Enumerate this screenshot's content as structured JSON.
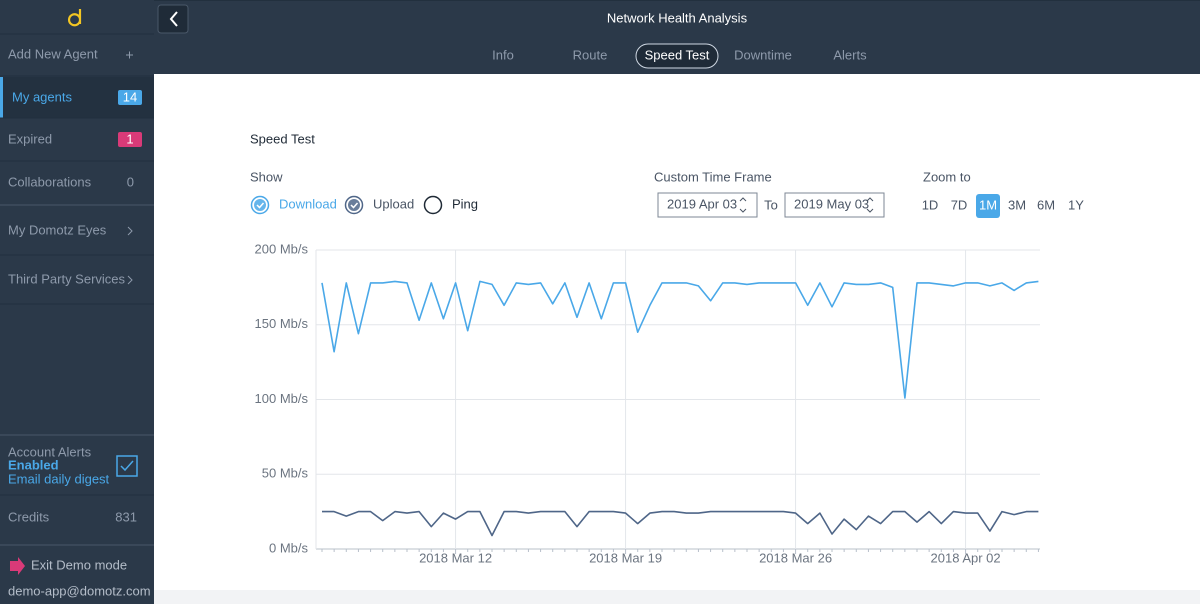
{
  "header": {
    "title": "Network Health Analysis",
    "tabs": [
      "Info",
      "Route",
      "Speed Test",
      "Downtime",
      "Alerts"
    ],
    "active_tab": 2
  },
  "sidebar": {
    "add_agent": "Add New Agent",
    "my_agents": {
      "label": "My agents",
      "count": 14
    },
    "expired": {
      "label": "Expired",
      "count": 1
    },
    "collaborations": {
      "label": "Collaborations",
      "count": 0
    },
    "eyes": "My Domotz Eyes",
    "third_party": "Third Party Services",
    "alerts": {
      "title": "Account Alerts",
      "status": "Enabled",
      "note": "Email daily digest"
    },
    "credits": {
      "label": "Credits",
      "value": 831
    },
    "exit": "Exit Demo mode",
    "email": "demo-app@domotz.com"
  },
  "panel": {
    "title": "Speed Test",
    "show_label": "Show",
    "time_frame": {
      "label": "Custom Time Frame",
      "from": "2019 Apr 03",
      "to_label": "To",
      "to": "2019 May 03"
    },
    "zoom": {
      "label": "Zoom to",
      "options": [
        "1D",
        "7D",
        "1M",
        "3M",
        "6M",
        "1Y"
      ],
      "active": 2
    },
    "unchecked_toggle": "Ping"
  },
  "chart_data": {
    "type": "line",
    "categories": [
      null,
      null,
      null,
      null,
      null,
      null,
      null,
      null,
      null,
      null,
      null,
      "2018 Mar 12",
      null,
      null,
      null,
      null,
      null,
      null,
      null,
      null,
      null,
      null,
      null,
      null,
      null,
      "2018 Mar 19",
      null,
      null,
      null,
      null,
      null,
      null,
      null,
      null,
      null,
      null,
      null,
      null,
      null,
      "2018 Mar 26",
      null,
      null,
      null,
      null,
      null,
      null,
      null,
      null,
      null,
      null,
      null,
      null,
      null,
      "2018 Apr 02",
      null,
      null,
      null,
      null,
      null,
      null
    ],
    "series": [
      {
        "name": "Download",
        "color": "#4aa8e8",
        "values": [
          178,
          132,
          178,
          144,
          178,
          178,
          179,
          178,
          153,
          178,
          154,
          178,
          146,
          179,
          177,
          163,
          178,
          177,
          178,
          164,
          178,
          155,
          178,
          154,
          178,
          178,
          145,
          163,
          178,
          178,
          178,
          176,
          166,
          178,
          178,
          177,
          178,
          178,
          178,
          178,
          163,
          178,
          162,
          178,
          177,
          177,
          178,
          175,
          101,
          178,
          178,
          177,
          176,
          178,
          178,
          176,
          178,
          173,
          178,
          179
        ]
      },
      {
        "name": "Upload",
        "color": "#4f6688",
        "values": [
          25,
          25,
          22,
          25,
          25,
          19,
          25,
          24,
          25,
          15,
          24,
          20,
          25,
          25,
          9,
          25,
          25,
          24,
          25,
          25,
          25,
          15,
          25,
          25,
          25,
          24,
          17,
          24,
          25,
          25,
          24,
          24,
          25,
          25,
          25,
          25,
          25,
          25,
          25,
          24,
          17,
          24,
          10,
          20,
          13,
          22,
          17,
          25,
          25,
          18,
          25,
          17,
          25,
          24,
          24,
          12,
          25,
          23,
          25,
          25
        ]
      }
    ],
    "ylim": [
      0,
      200
    ],
    "yticks": [
      {
        "value": 0,
        "label": "0 Mb/s"
      },
      {
        "value": 50,
        "label": "50 Mb/s"
      },
      {
        "value": 100,
        "label": "100 Mb/s"
      },
      {
        "value": 150,
        "label": "150 Mb/s"
      },
      {
        "value": 200,
        "label": "200 Mb/s"
      }
    ],
    "grid": true
  }
}
